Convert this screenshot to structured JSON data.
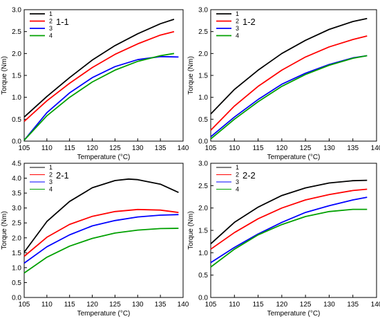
{
  "chart_data": [
    {
      "type": "line",
      "title": "1-1",
      "xlabel": "Temperature (°C)",
      "ylabel": "Torque (Nm)",
      "xlim": [
        105,
        140
      ],
      "ylim": [
        0.0,
        3.0
      ],
      "xticks": [
        "105",
        "110",
        "115",
        "120",
        "125",
        "130",
        "135",
        "140"
      ],
      "yticks": [
        "0.0",
        "0.5",
        "1.0",
        "1.5",
        "2.0",
        "2.5",
        "3.0"
      ],
      "legend_position": "top-left",
      "series": [
        {
          "name": "1",
          "color": "#000000",
          "x": [
            105,
            110,
            115,
            120,
            125,
            130,
            135,
            138
          ],
          "y": [
            0.55,
            1.02,
            1.45,
            1.85,
            2.18,
            2.45,
            2.68,
            2.78
          ]
        },
        {
          "name": "2",
          "color": "#ff0000",
          "x": [
            105,
            110,
            115,
            120,
            125,
            130,
            135,
            138
          ],
          "y": [
            0.45,
            0.92,
            1.32,
            1.68,
            1.98,
            2.22,
            2.42,
            2.5
          ]
        },
        {
          "name": "3",
          "color": "#0000ff",
          "x": [
            105,
            110,
            115,
            120,
            125,
            130,
            135,
            139
          ],
          "y": [
            0.02,
            0.65,
            1.1,
            1.45,
            1.7,
            1.86,
            1.93,
            1.92
          ]
        },
        {
          "name": "4",
          "color": "#00a000",
          "x": [
            105,
            110,
            115,
            120,
            125,
            130,
            135,
            138
          ],
          "y": [
            0.02,
            0.58,
            1.0,
            1.35,
            1.62,
            1.82,
            1.95,
            2.0
          ]
        }
      ]
    },
    {
      "type": "line",
      "title": "1-2",
      "xlabel": "Temperature (°C)",
      "ylabel": "Torque (Nm)",
      "xlim": [
        105,
        140
      ],
      "ylim": [
        0.0,
        3.0
      ],
      "xticks": [
        "105",
        "110",
        "115",
        "120",
        "125",
        "130",
        "135",
        "140"
      ],
      "yticks": [
        "0.0",
        "0.5",
        "1.0",
        "1.5",
        "2.0",
        "2.5",
        "3.0"
      ],
      "legend_position": "top-left",
      "series": [
        {
          "name": "1",
          "color": "#000000",
          "x": [
            105,
            110,
            115,
            120,
            125,
            130,
            135,
            138
          ],
          "y": [
            0.62,
            1.18,
            1.62,
            2.0,
            2.3,
            2.55,
            2.73,
            2.8
          ]
        },
        {
          "name": "2",
          "color": "#ff0000",
          "x": [
            105,
            110,
            115,
            120,
            125,
            130,
            135,
            138
          ],
          "y": [
            0.25,
            0.8,
            1.25,
            1.62,
            1.92,
            2.15,
            2.32,
            2.4
          ]
        },
        {
          "name": "3",
          "color": "#0000ff",
          "x": [
            105,
            110,
            115,
            120,
            125,
            130,
            135,
            138
          ],
          "y": [
            0.1,
            0.55,
            0.95,
            1.3,
            1.55,
            1.75,
            1.9,
            1.95
          ]
        },
        {
          "name": "4",
          "color": "#00a000",
          "x": [
            105,
            110,
            115,
            120,
            125,
            130,
            135,
            138
          ],
          "y": [
            0.05,
            0.5,
            0.9,
            1.25,
            1.52,
            1.73,
            1.89,
            1.95
          ]
        }
      ]
    },
    {
      "type": "line",
      "title": "2-1",
      "xlabel": "Temperature (°C)",
      "ylabel": "Torque (Nm)",
      "xlim": [
        105,
        140
      ],
      "ylim": [
        0.0,
        4.5
      ],
      "xticks": [
        "105",
        "110",
        "115",
        "120",
        "125",
        "130",
        "135",
        "140"
      ],
      "yticks": [
        "0.0",
        "0.5",
        "1.0",
        "1.5",
        "2.0",
        "2.5",
        "3.0",
        "3.5",
        "4.0",
        "4.5"
      ],
      "legend_position": "top-left",
      "series": [
        {
          "name": "1",
          "color": "#000000",
          "x": [
            105,
            110,
            115,
            120,
            125,
            128,
            130,
            135,
            139
          ],
          "y": [
            1.52,
            2.55,
            3.22,
            3.68,
            3.92,
            3.97,
            3.95,
            3.8,
            3.52
          ]
        },
        {
          "name": "2",
          "color": "#ff0000",
          "x": [
            105,
            110,
            115,
            120,
            125,
            130,
            135,
            139
          ],
          "y": [
            1.38,
            2.02,
            2.45,
            2.72,
            2.88,
            2.95,
            2.93,
            2.85
          ]
        },
        {
          "name": "3",
          "color": "#0000ff",
          "x": [
            105,
            110,
            115,
            120,
            125,
            130,
            135,
            139
          ],
          "y": [
            1.15,
            1.7,
            2.1,
            2.4,
            2.58,
            2.7,
            2.76,
            2.78
          ]
        },
        {
          "name": "4",
          "color": "#00a000",
          "x": [
            105,
            110,
            115,
            120,
            125,
            130,
            135,
            139
          ],
          "y": [
            0.82,
            1.35,
            1.72,
            1.98,
            2.16,
            2.26,
            2.31,
            2.32
          ]
        }
      ]
    },
    {
      "type": "line",
      "title": "2-2",
      "xlabel": "Temperature (°C)",
      "ylabel": "Torque (Nm)",
      "xlim": [
        105,
        140
      ],
      "ylim": [
        0.0,
        3.0
      ],
      "xticks": [
        "105",
        "110",
        "115",
        "120",
        "125",
        "130",
        "135",
        "140"
      ],
      "yticks": [
        "0.0",
        "0.5",
        "1.0",
        "1.5",
        "2.0",
        "2.5",
        "3.0"
      ],
      "legend_position": "top-left",
      "series": [
        {
          "name": "1",
          "color": "#000000",
          "x": [
            105,
            110,
            115,
            120,
            125,
            130,
            135,
            138
          ],
          "y": [
            1.2,
            1.68,
            2.02,
            2.28,
            2.45,
            2.56,
            2.61,
            2.62
          ]
        },
        {
          "name": "2",
          "color": "#ff0000",
          "x": [
            105,
            110,
            115,
            120,
            125,
            130,
            135,
            138
          ],
          "y": [
            1.08,
            1.45,
            1.76,
            2.0,
            2.18,
            2.3,
            2.39,
            2.42
          ]
        },
        {
          "name": "3",
          "color": "#0000ff",
          "x": [
            105,
            110,
            115,
            120,
            125,
            130,
            135,
            138
          ],
          "y": [
            0.78,
            1.12,
            1.42,
            1.68,
            1.9,
            2.05,
            2.18,
            2.24
          ]
        },
        {
          "name": "4",
          "color": "#00a000",
          "x": [
            105,
            110,
            115,
            120,
            125,
            130,
            135,
            138
          ],
          "y": [
            0.68,
            1.08,
            1.4,
            1.63,
            1.81,
            1.92,
            1.97,
            1.97
          ]
        }
      ]
    }
  ]
}
